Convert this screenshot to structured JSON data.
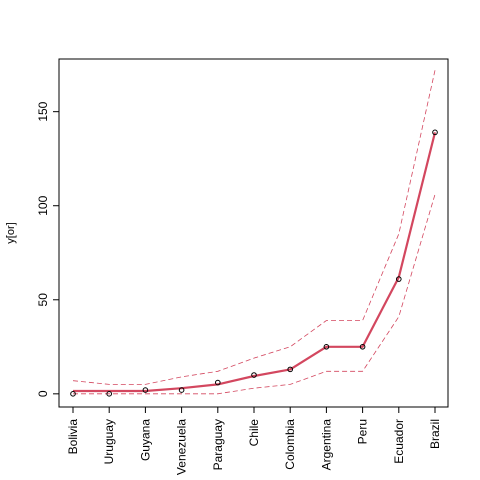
{
  "chart_data": {
    "type": "line",
    "title": "",
    "xlabel": "",
    "ylabel": "y[or]",
    "categories": [
      "Bolivia",
      "Uruguay",
      "Guyana",
      "Venezuela",
      "Paraguay",
      "Chile",
      "Colombia",
      "Argentina",
      "Peru",
      "Ecuador",
      "Brazil"
    ],
    "points": [
      0,
      0,
      2,
      2,
      6,
      10,
      13,
      25,
      25,
      61,
      139
    ],
    "fit": [
      1.5,
      1.5,
      1.5,
      3,
      5,
      9.5,
      13,
      25,
      25,
      62,
      139
    ],
    "upper": [
      7,
      5,
      5,
      9,
      12,
      19,
      25,
      39,
      39,
      85,
      172
    ],
    "lower": [
      0,
      0,
      0,
      0,
      0,
      3,
      5,
      12,
      12,
      41,
      106
    ],
    "yticks": [
      0,
      50,
      100,
      150
    ],
    "ylim": [
      -7,
      178
    ],
    "grid": false,
    "colors": {
      "fit": "#d3475f",
      "band": "#d3475f",
      "points": "#000000"
    }
  }
}
